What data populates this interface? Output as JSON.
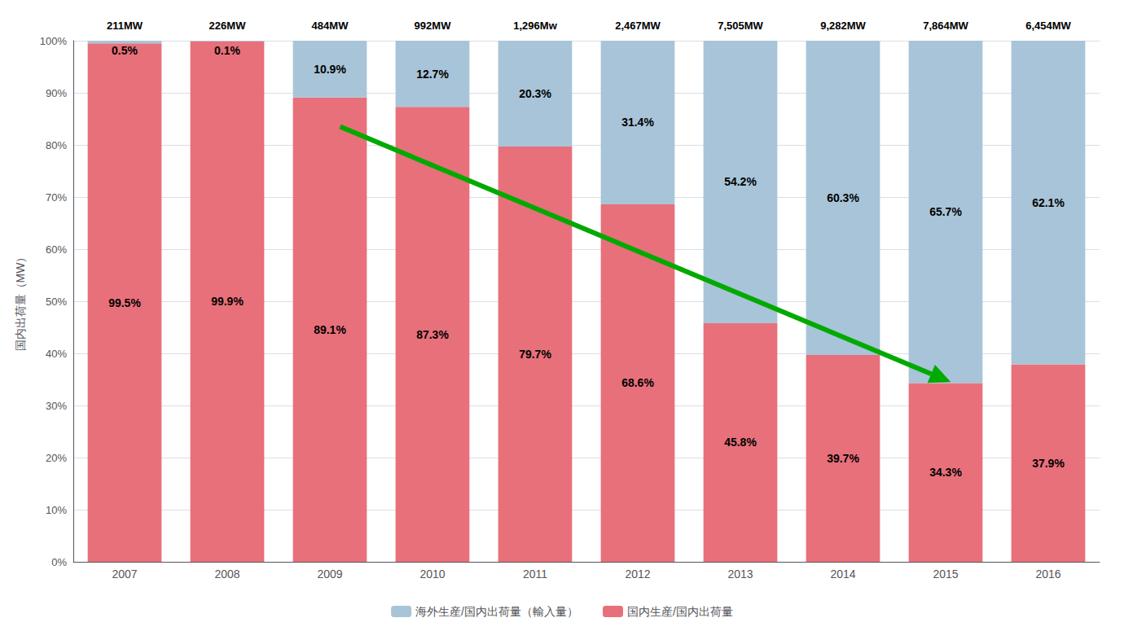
{
  "chart_data": {
    "type": "bar",
    "stacked": true,
    "categories": [
      "2007",
      "2008",
      "2009",
      "2010",
      "2011",
      "2012",
      "2013",
      "2014",
      "2015",
      "2016"
    ],
    "series": [
      {
        "name": "国内生産/国内出荷量",
        "color": "#E8707A",
        "values": [
          99.5,
          99.9,
          89.1,
          87.3,
          79.7,
          68.6,
          45.8,
          39.7,
          34.3,
          37.9
        ],
        "value_labels": [
          "99.5%",
          "99.9%",
          "89.1%",
          "87.3%",
          "79.7%",
          "68.6%",
          "45.8%",
          "39.7%",
          "34.3%",
          "37.9%"
        ]
      },
      {
        "name": "海外生産/国内出荷量（輸入量）",
        "color": "#A8C4D8",
        "values": [
          0.5,
          0.1,
          10.9,
          12.7,
          20.3,
          31.4,
          54.2,
          60.3,
          65.7,
          62.1
        ],
        "value_labels": [
          "0.5%",
          "0.1%",
          "10.9%",
          "12.7%",
          "20.3%",
          "31.4%",
          "54.2%",
          "60.3%",
          "65.7%",
          "62.1%"
        ]
      }
    ],
    "ylabel": "国内出荷量（MW）",
    "ylim": [
      0,
      100
    ],
    "yticks": [
      {
        "value": 0,
        "label": "0%"
      },
      {
        "value": 10,
        "label": "10%"
      },
      {
        "value": 20,
        "label": "20%"
      },
      {
        "value": 30,
        "label": "30%"
      },
      {
        "value": 40,
        "label": "40%"
      },
      {
        "value": 50,
        "label": "50%"
      },
      {
        "value": 60,
        "label": "60%"
      },
      {
        "value": 70,
        "label": "70%"
      },
      {
        "value": 80,
        "label": "80%"
      },
      {
        "value": 90,
        "label": "90%"
      },
      {
        "value": 100,
        "label": "100%"
      }
    ],
    "grid": true,
    "legend": "bottom",
    "data_labels": true,
    "annotations": [
      {
        "text": "211MW",
        "x": "2007"
      },
      {
        "text": "226MW",
        "x": "2008"
      },
      {
        "text": "484MW",
        "x": "2009"
      },
      {
        "text": "992MW",
        "x": "2010"
      },
      {
        "text": "1,296Mw",
        "x": "2011"
      },
      {
        "text": "2,467MW",
        "x": "2012"
      },
      {
        "text": "7,505MW",
        "x": "2013"
      },
      {
        "text": "9,282MW",
        "x": "2014"
      },
      {
        "text": "7,864MW",
        "x": "2015"
      },
      {
        "text": "6,454MW",
        "x": "2016"
      },
      {
        "from": [
          2.1,
          83.5
        ],
        "to": [
          8.05,
          34.5
        ],
        "color": "#00AA00"
      }
    ]
  }
}
